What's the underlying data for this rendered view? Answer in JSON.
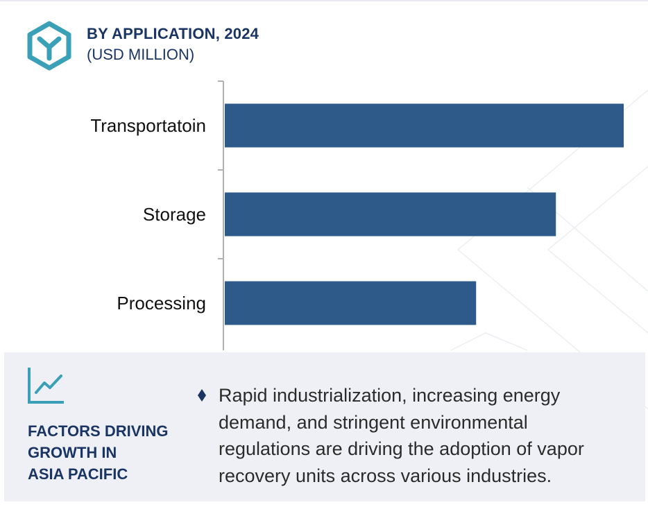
{
  "header": {
    "title": "BY APPLICATION, 2024",
    "subtitle": "(USD MILLION)",
    "logo_icon": "hexagon-y-logo-icon"
  },
  "colors": {
    "bar": "#2e5a8a",
    "title": "#1a3563",
    "accent_teal": "#3aa0b8",
    "panel_bg": "#eef0f5",
    "axis": "#b0b0b0"
  },
  "chart_data": {
    "type": "bar",
    "orientation": "horizontal",
    "title": "BY APPLICATION, 2024",
    "subtitle": "(USD MILLION)",
    "categories": [
      "Transportatoin",
      "Storage",
      "Processing"
    ],
    "values": [
      100,
      83,
      63
    ],
    "xlim": [
      0,
      100
    ],
    "grid": false,
    "legend": "none",
    "value_labels_shown": false
  },
  "panel": {
    "icon": "trend-line-chart-icon",
    "heading_lines": [
      "FACTORS DRIVING",
      "GROWTH IN",
      "ASIA PACIFIC"
    ],
    "bullet_icon": "diamond-bullet-icon",
    "description": "Rapid industrialization, increasing energy demand, and stringent environmental regulations are driving the adoption of vapor recovery units across various industries."
  }
}
